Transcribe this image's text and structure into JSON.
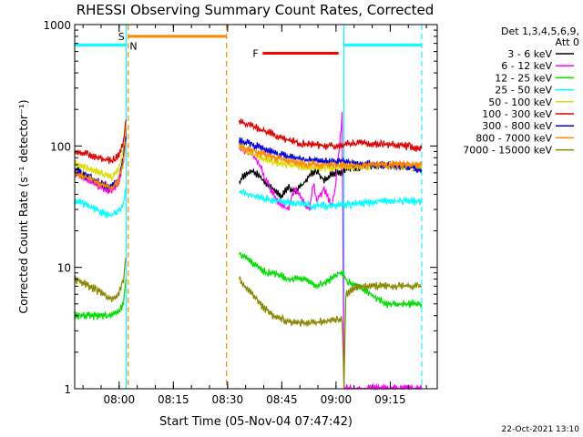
{
  "chart_data": {
    "type": "line",
    "title": "RHESSI Observing Summary Count Rates, Corrected",
    "xlabel": "Start Time (05-Nov-04 07:47:42)",
    "ylabel": "Corrected Count Rate (s⁻¹ detector⁻¹)",
    "y_scale": "log",
    "ylim": [
      1,
      1000
    ],
    "xlim_minutes": [
      0,
      100.3
    ],
    "x_ticks": [
      {
        "label": "08:00",
        "minute": 12.3
      },
      {
        "label": "08:15",
        "minute": 27.3
      },
      {
        "label": "08:30",
        "minute": 42.3
      },
      {
        "label": "08:45",
        "minute": 57.3
      },
      {
        "label": "09:00",
        "minute": 72.3
      },
      {
        "label": "09:15",
        "minute": 87.3
      }
    ],
    "y_ticks": [
      {
        "label": "1",
        "value": 1
      },
      {
        "label": "10",
        "value": 10
      },
      {
        "label": "100",
        "value": 100
      },
      {
        "label": "1000",
        "value": 1000
      }
    ],
    "legend_header": [
      "Det 1,3,4,5,6,9,",
      "Att 0"
    ],
    "legend": [
      {
        "label": "3 - 6 keV",
        "color": "#000000"
      },
      {
        "label": "6 - 12 keV",
        "color": "#ff00ff"
      },
      {
        "label": "12 - 25 keV",
        "color": "#00dd00"
      },
      {
        "label": "25 - 50 keV",
        "color": "#00ffff"
      },
      {
        "label": "50 - 100 keV",
        "color": "#dddd00"
      },
      {
        "label": "100 - 300 keV",
        "color": "#dd0000"
      },
      {
        "label": "300 - 800 keV",
        "color": "#0000dd"
      },
      {
        "label": "800 - 7000 keV",
        "color": "#ff8800"
      },
      {
        "label": "7000 - 15000 keV",
        "color": "#888800"
      }
    ],
    "flag_bars": [
      {
        "label": "S",
        "color": "#ff8800",
        "start": 14.8,
        "end": 42.0,
        "level": 800
      },
      {
        "label": "F",
        "color": "#ff0000",
        "start": 52.0,
        "end": 73.0,
        "level": 580
      }
    ],
    "night_bars": [
      {
        "label": "N",
        "color": "#00ffff",
        "start": 0,
        "end": 14.2,
        "level": 680
      },
      {
        "label": "",
        "color": "#00ffff",
        "start": 74.5,
        "end": 96.0,
        "level": 680
      }
    ],
    "vlines": [
      {
        "minute": 14.2,
        "color": "#00ffff",
        "dashed": false
      },
      {
        "minute": 74.5,
        "color": "#00ffff",
        "dashed": false
      },
      {
        "minute": 14.8,
        "color": "#ff8800",
        "dashed": true
      },
      {
        "minute": 42.0,
        "color": "#ff8800",
        "dashed": true
      },
      {
        "minute": 96.0,
        "color": "#00ffff",
        "dashed": true
      }
    ],
    "segments": [
      [
        0,
        14.2
      ],
      [
        45.5,
        96.0
      ]
    ],
    "series": [
      {
        "name": "3 - 6 keV",
        "color": "#000000",
        "points": [
          [
            0,
            65
          ],
          [
            4,
            55
          ],
          [
            8,
            46
          ],
          [
            10,
            44
          ],
          [
            12,
            50
          ],
          [
            13.5,
            80
          ],
          [
            14.2,
            140
          ],
          [
            45.5,
            50
          ],
          [
            47,
            58
          ],
          [
            49,
            62
          ],
          [
            51,
            58
          ],
          [
            53,
            48
          ],
          [
            55,
            44
          ],
          [
            57,
            38
          ],
          [
            59,
            46
          ],
          [
            61,
            42
          ],
          [
            63,
            48
          ],
          [
            65,
            58
          ],
          [
            67,
            62
          ],
          [
            69,
            52
          ],
          [
            71,
            58
          ],
          [
            73,
            62
          ],
          [
            74,
            60
          ],
          [
            75,
            65
          ],
          [
            80,
            68
          ],
          [
            85,
            70
          ],
          [
            90,
            68
          ],
          [
            96,
            66
          ]
        ]
      },
      {
        "name": "6 - 12 keV",
        "color": "#ff00ff",
        "points": [
          [
            0,
            60
          ],
          [
            4,
            52
          ],
          [
            8,
            44
          ],
          [
            10,
            42
          ],
          [
            12,
            48
          ],
          [
            13.5,
            75
          ],
          [
            14.2,
            150
          ],
          [
            45.5,
            95
          ],
          [
            47,
            92
          ],
          [
            49,
            85
          ],
          [
            51,
            72
          ],
          [
            53,
            52
          ],
          [
            55,
            40
          ],
          [
            57,
            33
          ],
          [
            59,
            30
          ],
          [
            61,
            45
          ],
          [
            63,
            35
          ],
          [
            65,
            30
          ],
          [
            66,
            50
          ],
          [
            67,
            35
          ],
          [
            69,
            45
          ],
          [
            71,
            32
          ],
          [
            72,
            42
          ],
          [
            73.5,
            120
          ],
          [
            74,
            180
          ],
          [
            74.5,
            1.0
          ],
          [
            96,
            1.0
          ]
        ]
      },
      {
        "name": "12 - 25 keV",
        "color": "#00dd00",
        "points": [
          [
            0,
            4
          ],
          [
            4,
            4
          ],
          [
            8,
            4
          ],
          [
            10,
            4
          ],
          [
            12,
            4.2
          ],
          [
            13.5,
            5
          ],
          [
            14.2,
            8
          ],
          [
            45.5,
            13
          ],
          [
            47,
            12
          ],
          [
            49,
            11
          ],
          [
            51,
            10
          ],
          [
            53,
            9
          ],
          [
            55,
            9
          ],
          [
            57,
            8.5
          ],
          [
            59,
            8
          ],
          [
            61,
            8
          ],
          [
            63,
            8
          ],
          [
            65,
            7.5
          ],
          [
            67,
            7
          ],
          [
            69,
            7.5
          ],
          [
            71,
            8
          ],
          [
            73,
            9
          ],
          [
            74,
            9
          ],
          [
            75,
            8
          ],
          [
            78,
            7
          ],
          [
            82,
            6
          ],
          [
            86,
            5
          ],
          [
            90,
            5
          ],
          [
            93,
            5
          ],
          [
            96,
            5
          ]
        ]
      },
      {
        "name": "25 - 50 keV",
        "color": "#00ffff",
        "points": [
          [
            0,
            36
          ],
          [
            4,
            32
          ],
          [
            8,
            28
          ],
          [
            10,
            27
          ],
          [
            12,
            29
          ],
          [
            13.5,
            34
          ],
          [
            14.2,
            45
          ],
          [
            45.5,
            42
          ],
          [
            48,
            40
          ],
          [
            51,
            38
          ],
          [
            54,
            36
          ],
          [
            57,
            35
          ],
          [
            60,
            34
          ],
          [
            63,
            33
          ],
          [
            66,
            32
          ],
          [
            69,
            32
          ],
          [
            72,
            32
          ],
          [
            74,
            33
          ],
          [
            75,
            33
          ],
          [
            80,
            34
          ],
          [
            85,
            35
          ],
          [
            90,
            35
          ],
          [
            96,
            35
          ]
        ]
      },
      {
        "name": "50 - 100 keV",
        "color": "#dddd00",
        "points": [
          [
            0,
            72
          ],
          [
            4,
            65
          ],
          [
            8,
            58
          ],
          [
            10,
            56
          ],
          [
            12,
            62
          ],
          [
            13.5,
            95
          ],
          [
            14.2,
            150
          ],
          [
            45.5,
            98
          ],
          [
            48,
            90
          ],
          [
            51,
            82
          ],
          [
            54,
            76
          ],
          [
            57,
            72
          ],
          [
            60,
            70
          ],
          [
            63,
            68
          ],
          [
            66,
            66
          ],
          [
            69,
            66
          ],
          [
            72,
            67
          ],
          [
            74,
            67
          ],
          [
            75,
            68
          ],
          [
            80,
            68
          ],
          [
            85,
            68
          ],
          [
            90,
            68
          ],
          [
            96,
            68
          ]
        ]
      },
      {
        "name": "100 - 300 keV",
        "color": "#dd0000",
        "points": [
          [
            0,
            92
          ],
          [
            4,
            85
          ],
          [
            8,
            78
          ],
          [
            10,
            75
          ],
          [
            12,
            82
          ],
          [
            13.5,
            110
          ],
          [
            14.2,
            165
          ],
          [
            45.5,
            160
          ],
          [
            48,
            150
          ],
          [
            51,
            138
          ],
          [
            54,
            128
          ],
          [
            57,
            118
          ],
          [
            60,
            110
          ],
          [
            63,
            105
          ],
          [
            66,
            102
          ],
          [
            69,
            100
          ],
          [
            72,
            100
          ],
          [
            74,
            102
          ],
          [
            75,
            104
          ],
          [
            80,
            105
          ],
          [
            85,
            104
          ],
          [
            90,
            102
          ],
          [
            96,
            95
          ]
        ]
      },
      {
        "name": "300 - 800 keV",
        "color": "#0000dd",
        "points": [
          [
            0,
            62
          ],
          [
            4,
            55
          ],
          [
            8,
            48
          ],
          [
            10,
            46
          ],
          [
            12,
            52
          ],
          [
            13.5,
            80
          ],
          [
            14.2,
            120
          ],
          [
            45.5,
            110
          ],
          [
            48,
            105
          ],
          [
            51,
            98
          ],
          [
            54,
            90
          ],
          [
            57,
            85
          ],
          [
            60,
            80
          ],
          [
            63,
            78
          ],
          [
            66,
            76
          ],
          [
            69,
            75
          ],
          [
            72,
            74
          ],
          [
            74,
            74
          ],
          [
            75,
            74
          ],
          [
            80,
            72
          ],
          [
            85,
            70
          ],
          [
            90,
            68
          ],
          [
            96,
            64
          ]
        ]
      },
      {
        "name": "800 - 7000 keV",
        "color": "#ff8800",
        "points": [
          [
            0,
            60
          ],
          [
            4,
            54
          ],
          [
            8,
            47
          ],
          [
            10,
            45
          ],
          [
            12,
            50
          ],
          [
            13.5,
            75
          ],
          [
            14.2,
            110
          ],
          [
            45.5,
            100
          ],
          [
            48,
            95
          ],
          [
            51,
            88
          ],
          [
            54,
            82
          ],
          [
            57,
            78
          ],
          [
            60,
            74
          ],
          [
            63,
            72
          ],
          [
            66,
            71
          ],
          [
            69,
            70
          ],
          [
            72,
            70
          ],
          [
            74,
            70
          ],
          [
            75,
            70
          ],
          [
            80,
            70
          ],
          [
            85,
            70
          ],
          [
            90,
            70
          ],
          [
            96,
            69
          ]
        ]
      },
      {
        "name": "7000 - 15000 keV",
        "color": "#888800",
        "points": [
          [
            0,
            8
          ],
          [
            4,
            7
          ],
          [
            8,
            6
          ],
          [
            10,
            5.5
          ],
          [
            12,
            6
          ],
          [
            13.5,
            8
          ],
          [
            14.2,
            12
          ],
          [
            45.5,
            8
          ],
          [
            47,
            7
          ],
          [
            49,
            6
          ],
          [
            51,
            5
          ],
          [
            53,
            4.5
          ],
          [
            55,
            4
          ],
          [
            57,
            3.8
          ],
          [
            60,
            3.5
          ],
          [
            63,
            3.5
          ],
          [
            66,
            3.5
          ],
          [
            69,
            3.6
          ],
          [
            72,
            3.7
          ],
          [
            74,
            3.8
          ],
          [
            74.5,
            1.0
          ],
          [
            75,
            6
          ],
          [
            78,
            7
          ],
          [
            82,
            7
          ],
          [
            86,
            7
          ],
          [
            90,
            7
          ],
          [
            93,
            7
          ],
          [
            96,
            7
          ]
        ]
      }
    ]
  },
  "footer": {
    "date": "22-Oct-2021 13:10"
  }
}
